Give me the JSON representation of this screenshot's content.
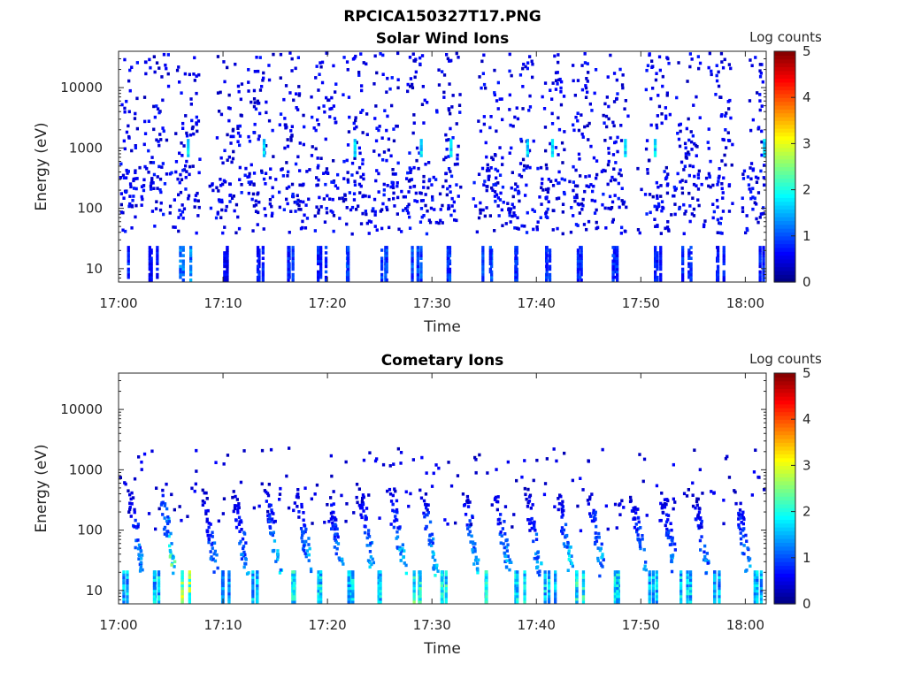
{
  "figure_title": "RPCICA150327T17.PNG",
  "chart_data": [
    {
      "type": "heatmap",
      "title": "Solar Wind Ions",
      "xlabel": "Time",
      "ylabel": "Energy (eV)",
      "xticks": [
        "17:00",
        "17:10",
        "17:20",
        "17:30",
        "17:40",
        "17:50",
        "18:00"
      ],
      "xlim": [
        "17:00",
        "18:02"
      ],
      "yscale": "log",
      "yticks": [
        10,
        100,
        1000,
        10000
      ],
      "ylim": [
        6,
        40000
      ],
      "colorbar": {
        "label": "Log counts",
        "range": [
          0,
          5
        ],
        "ticks": [
          0,
          1,
          2,
          3,
          4,
          5
        ],
        "colormap": "jet"
      },
      "bursts": [
        {
          "time": "17:00",
          "strength": 1.0
        },
        {
          "time": "17:03",
          "strength": 0.8
        },
        {
          "time": "17:06",
          "strength": 1.5
        },
        {
          "time": "17:10",
          "strength": 0.7
        },
        {
          "time": "17:13",
          "strength": 0.9
        },
        {
          "time": "17:16",
          "strength": 1.0
        },
        {
          "time": "17:19",
          "strength": 1.0
        },
        {
          "time": "17:22",
          "strength": 1.1
        },
        {
          "time": "17:25",
          "strength": 1.2
        },
        {
          "time": "17:28",
          "strength": 1.2
        },
        {
          "time": "17:31",
          "strength": 1.1
        },
        {
          "time": "17:35",
          "strength": 1.2
        },
        {
          "time": "17:38",
          "strength": 1.0
        },
        {
          "time": "17:41",
          "strength": 1.1
        },
        {
          "time": "17:44",
          "strength": 1.0
        },
        {
          "time": "17:47",
          "strength": 1.0
        },
        {
          "time": "17:51",
          "strength": 0.9
        },
        {
          "time": "17:54",
          "strength": 1.0
        },
        {
          "time": "17:57",
          "strength": 0.9
        },
        {
          "time": "18:01",
          "strength": 0.9
        }
      ]
    },
    {
      "type": "heatmap",
      "title": "Cometary Ions",
      "xlabel": "Time",
      "ylabel": "Energy (eV)",
      "xticks": [
        "17:00",
        "17:10",
        "17:20",
        "17:30",
        "17:40",
        "17:50",
        "18:00"
      ],
      "xlim": [
        "17:00",
        "18:02"
      ],
      "yscale": "log",
      "yticks": [
        10,
        100,
        1000,
        10000
      ],
      "ylim": [
        6,
        40000
      ],
      "colorbar": {
        "label": "Log counts",
        "range": [
          0,
          5
        ],
        "ticks": [
          0,
          1,
          2,
          3,
          4,
          5
        ],
        "colormap": "jet"
      },
      "bursts": [
        {
          "time": "17:00",
          "strength": 1.8
        },
        {
          "time": "17:03",
          "strength": 1.9
        },
        {
          "time": "17:06",
          "strength": 3.0
        },
        {
          "time": "17:10",
          "strength": 1.6
        },
        {
          "time": "17:13",
          "strength": 1.8
        },
        {
          "time": "17:16",
          "strength": 2.2
        },
        {
          "time": "17:19",
          "strength": 2.0
        },
        {
          "time": "17:22",
          "strength": 1.9
        },
        {
          "time": "17:25",
          "strength": 2.0
        },
        {
          "time": "17:28",
          "strength": 2.4
        },
        {
          "time": "17:31",
          "strength": 2.2
        },
        {
          "time": "17:35",
          "strength": 2.1
        },
        {
          "time": "17:38",
          "strength": 2.0
        },
        {
          "time": "17:41",
          "strength": 1.9
        },
        {
          "time": "17:44",
          "strength": 2.2
        },
        {
          "time": "17:47",
          "strength": 2.0
        },
        {
          "time": "17:51",
          "strength": 1.8
        },
        {
          "time": "17:54",
          "strength": 1.9
        },
        {
          "time": "17:57",
          "strength": 1.7
        },
        {
          "time": "18:01",
          "strength": 1.8
        }
      ]
    }
  ]
}
